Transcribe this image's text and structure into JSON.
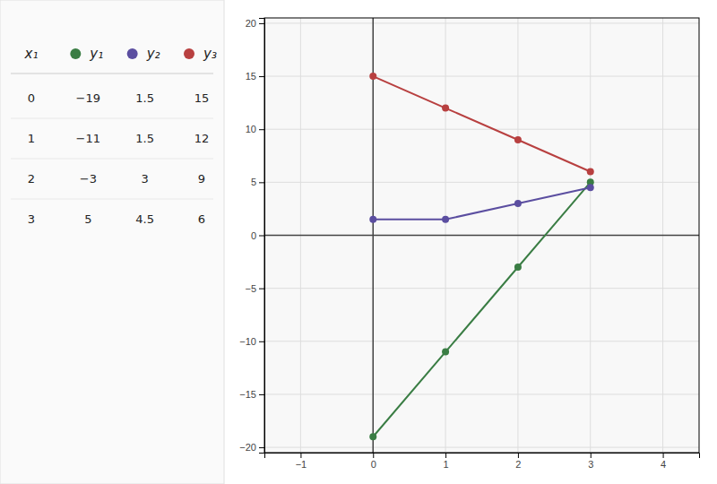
{
  "chart_data": {
    "type": "line",
    "xlabel": "x₁",
    "x": [
      0,
      1,
      2,
      3
    ],
    "series": [
      {
        "name": "y₁",
        "color": "#3a7d44",
        "values": [
          -19,
          -11,
          -3,
          5
        ]
      },
      {
        "name": "y₂",
        "color": "#5b4ea0",
        "values": [
          1.5,
          1.5,
          3,
          4.5
        ]
      },
      {
        "name": "y₃",
        "color": "#b84040",
        "values": [
          15,
          12,
          9,
          6
        ]
      }
    ],
    "xlim": [
      -1.5,
      4.5
    ],
    "ylim": [
      -20.5,
      20.5
    ],
    "xticks": [
      -1,
      0,
      1,
      2,
      3,
      4
    ],
    "yticks": [
      -20,
      -15,
      -10,
      -5,
      0,
      5,
      10,
      15,
      20
    ],
    "grid": true,
    "marker": "o",
    "line_style": "solid"
  }
}
